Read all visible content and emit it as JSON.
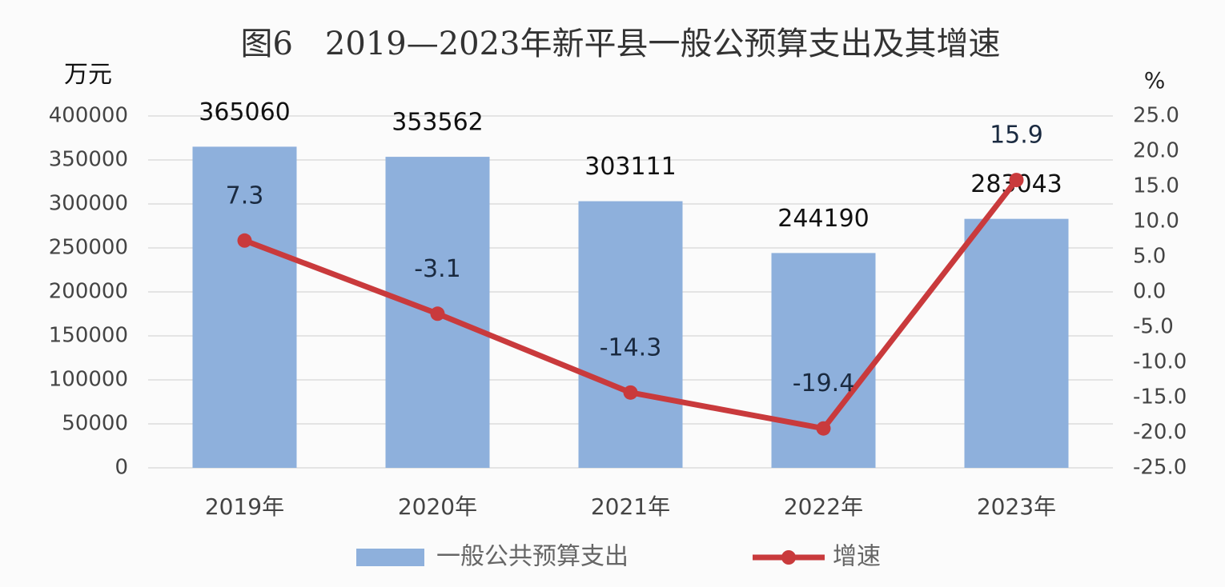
{
  "chart_data": {
    "type": "bar",
    "title": "图6　2019—2023年新平县一般公预算支出及其增速",
    "y_label": "万元",
    "y2_label": "%",
    "categories": [
      "2019年",
      "2020年",
      "2021年",
      "2022年",
      "2023年"
    ],
    "series": [
      {
        "name": "一般公共预算支出",
        "type": "bar",
        "color": "#8eb0dc",
        "values": [
          365060,
          353562,
          303111,
          244190,
          283043
        ]
      },
      {
        "name": "增速",
        "type": "line",
        "axis": "y2",
        "color": "#c93a3c",
        "values": [
          7.3,
          -3.1,
          -14.3,
          -19.4,
          15.9
        ]
      }
    ],
    "ylim": [
      0,
      400000
    ],
    "yticks": [
      0,
      50000,
      100000,
      150000,
      200000,
      250000,
      300000,
      350000,
      400000
    ],
    "y2lim": [
      -25,
      25
    ],
    "y2ticks": [
      {
        "value": -25,
        "label": "-25.0"
      },
      {
        "value": -20,
        "label": "-20.0"
      },
      {
        "value": -15,
        "label": "-15.0"
      },
      {
        "value": -10,
        "label": "-10.0"
      },
      {
        "value": -5,
        "label": "-5.0"
      },
      {
        "value": 0,
        "label": "0.0"
      },
      {
        "value": 5,
        "label": "5.0"
      },
      {
        "value": 10,
        "label": "10.0"
      },
      {
        "value": 15,
        "label": "15.0"
      },
      {
        "value": 20,
        "label": "20.0"
      },
      {
        "value": 25,
        "label": "25.0"
      }
    ],
    "grid": true,
    "legend": "bottom"
  }
}
